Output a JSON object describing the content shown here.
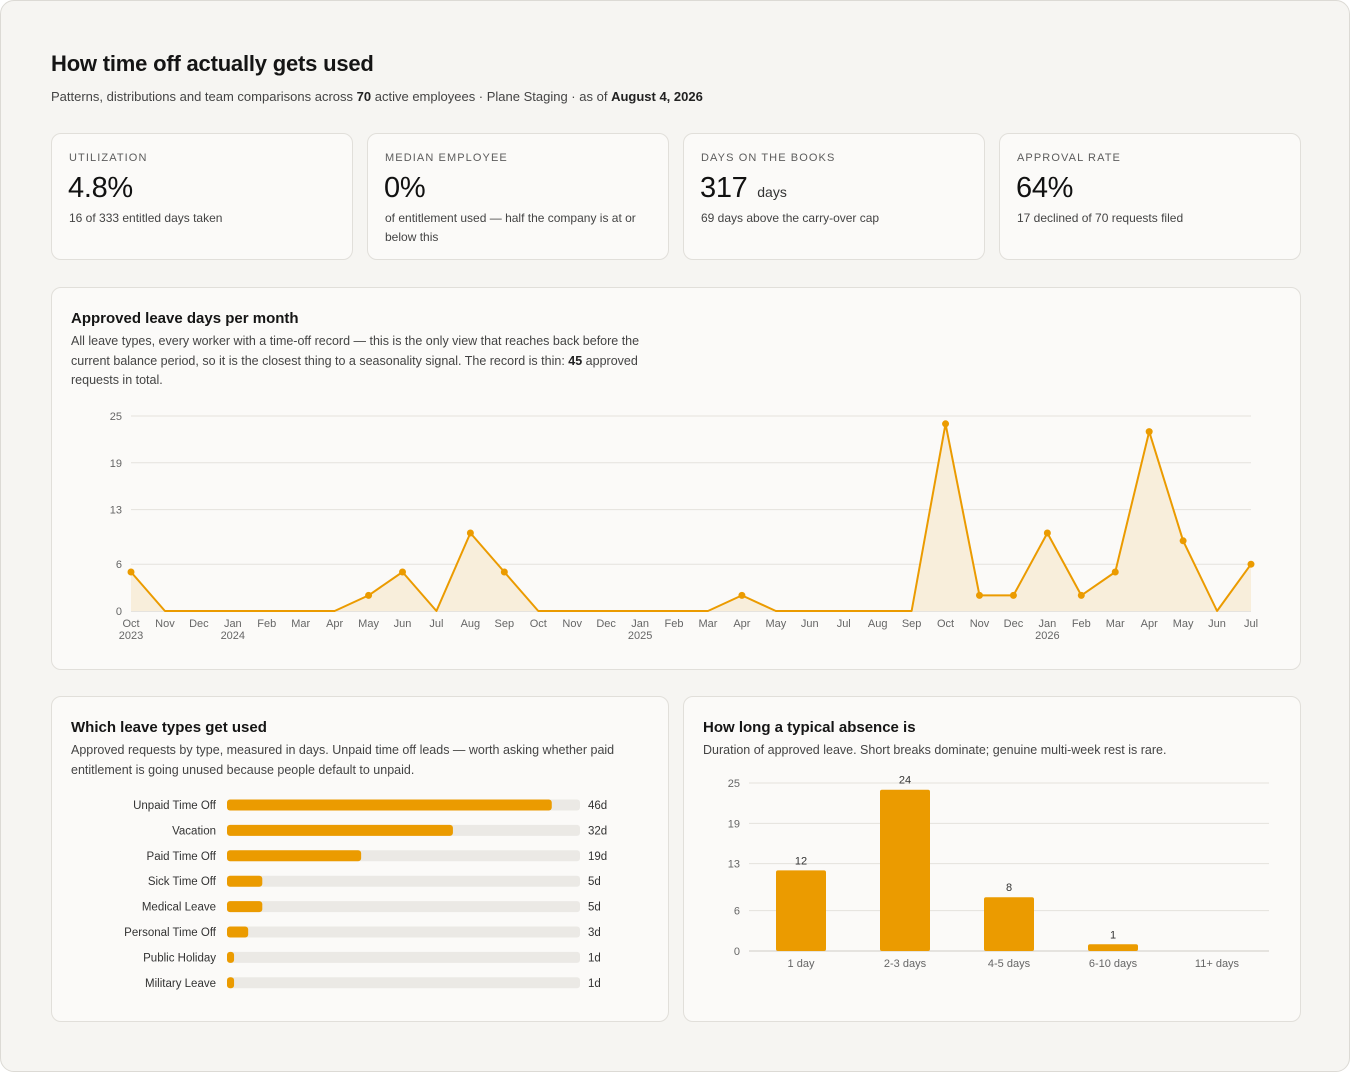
{
  "header": {
    "title": "How time off actually gets used",
    "subtitle_prefix": "Patterns, distributions and team comparisons across",
    "employee_count": "70",
    "subtitle_mid": "active employees · Plane Staging · as of",
    "as_of_date": "August 4, 2026"
  },
  "kpis": [
    {
      "label": "UTILIZATION",
      "value": "4.8%",
      "unit": "",
      "note": "16 of 333 entitled days taken"
    },
    {
      "label": "MEDIAN EMPLOYEE",
      "value": "0%",
      "unit": "",
      "note": "of entitlement used — half the company is at or below this"
    },
    {
      "label": "DAYS ON THE BOOKS",
      "value": "317",
      "unit": "days",
      "note": "69 days above the carry-over cap"
    },
    {
      "label": "APPROVAL RATE",
      "value": "64%",
      "unit": "",
      "note": "17 declined of 70 requests filed"
    }
  ],
  "monthly_section": {
    "title": "Approved leave days per month",
    "desc_part1": "All leave types, every worker with a time-off record — this is the only view that reaches back before the current balance period, so it is the closest thing to a seasonality signal. The record is thin:",
    "desc_count": "45",
    "desc_part2": "approved requests in total."
  },
  "types_section": {
    "title": "Which leave types get used",
    "desc": "Approved requests by type, measured in days. Unpaid time off leads — worth asking whether paid entitlement is going unused because people default to unpaid."
  },
  "duration_section": {
    "title": "How long a typical absence is",
    "desc": "Duration of approved leave. Short breaks dominate; genuine multi-week rest is rare."
  },
  "colors": {
    "accent": "#eb9b00",
    "area_fill": "#f8eedb",
    "track": "#ebe9e5",
    "grid": "#e4e2dd"
  },
  "chart_data": [
    {
      "type": "area",
      "x": [
        "Oct",
        "Nov",
        "Dec",
        "Jan",
        "Feb",
        "Mar",
        "Apr",
        "May",
        "Jun",
        "Jul",
        "Aug",
        "Sep",
        "Oct",
        "Nov",
        "Dec",
        "Jan",
        "Feb",
        "Mar",
        "Apr",
        "May",
        "Jun",
        "Jul",
        "Aug",
        "Sep",
        "Oct",
        "Nov",
        "Dec",
        "Jan",
        "Feb",
        "Mar",
        "Apr",
        "May",
        "Jun",
        "Jul"
      ],
      "x_year_labels": {
        "0": "2023",
        "3": "2024",
        "15": "2025",
        "27": "2026"
      },
      "values": [
        5,
        0,
        0,
        0,
        0,
        0,
        0,
        2,
        5,
        0,
        10,
        5,
        0,
        0,
        0,
        0,
        0,
        0,
        2,
        0,
        0,
        0,
        0,
        0,
        24,
        2,
        2,
        10,
        2,
        5,
        23,
        9,
        0,
        6
      ],
      "marked_points": [
        0,
        7,
        8,
        10,
        11,
        18,
        24,
        25,
        26,
        27,
        28,
        29,
        30,
        31,
        33
      ],
      "yticks": [
        0,
        6,
        13,
        19,
        25
      ],
      "ylim": [
        0,
        25
      ],
      "grid": true
    },
    {
      "type": "bar",
      "orientation": "horizontal",
      "categories": [
        "Unpaid Time Off",
        "Vacation",
        "Paid Time Off",
        "Sick Time Off",
        "Medical Leave",
        "Personal Time Off",
        "Public Holiday",
        "Military Leave"
      ],
      "values": [
        46,
        32,
        19,
        5,
        5,
        3,
        1,
        1
      ],
      "value_labels": [
        "46d",
        "32d",
        "19d",
        "5d",
        "5d",
        "3d",
        "1d",
        "1d"
      ],
      "max": 50
    },
    {
      "type": "bar",
      "categories": [
        "1 day",
        "2-3 days",
        "4-5 days",
        "6-10 days",
        "11+ days"
      ],
      "values": [
        12,
        24,
        8,
        1,
        0
      ],
      "value_labels": [
        "12",
        "24",
        "8",
        "1",
        ""
      ],
      "yticks": [
        0,
        6,
        13,
        19,
        25
      ],
      "ylim": [
        0,
        25
      ],
      "grid": true
    }
  ]
}
